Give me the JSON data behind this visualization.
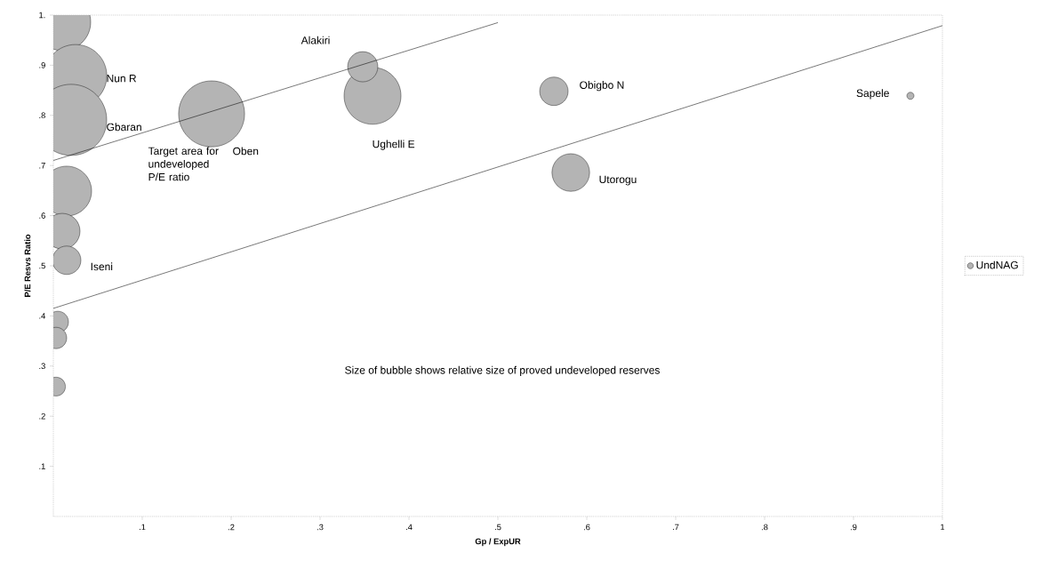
{
  "chart_data": {
    "type": "bubble",
    "xlabel": "Gp / ExpUR",
    "ylabel": "P/E Resvs Ratio",
    "xlim": [
      0,
      1
    ],
    "ylim": [
      0,
      1
    ],
    "xticks": [
      {
        "value": 0.1,
        "label": ".1"
      },
      {
        "value": 0.2,
        "label": ".2"
      },
      {
        "value": 0.3,
        "label": ".3"
      },
      {
        "value": 0.4,
        "label": ".4"
      },
      {
        "value": 0.5,
        "label": ".5"
      },
      {
        "value": 0.6,
        "label": ".6"
      },
      {
        "value": 0.7,
        "label": ".7"
      },
      {
        "value": 0.8,
        "label": ".8"
      },
      {
        "value": 0.9,
        "label": ".9"
      },
      {
        "value": 1.0,
        "label": "1"
      }
    ],
    "yticks": [
      {
        "value": 0.1,
        "label": ".1"
      },
      {
        "value": 0.2,
        "label": ".2"
      },
      {
        "value": 0.3,
        "label": ".3"
      },
      {
        "value": 0.4,
        "label": ".4"
      },
      {
        "value": 0.5,
        "label": ".5"
      },
      {
        "value": 0.6,
        "label": ".6"
      },
      {
        "value": 0.7,
        "label": ".7"
      },
      {
        "value": 0.8,
        "label": ".8"
      },
      {
        "value": 0.9,
        "label": ".9"
      },
      {
        "value": 1.0,
        "label": "1."
      }
    ],
    "legend": "right",
    "series": [
      {
        "name": "UndNAG",
        "color": "#b4b4b4",
        "x": [
          0.01,
          0.025,
          0.02,
          0.015,
          0.01,
          0.015,
          0.005,
          0.003,
          0.003,
          0.178,
          0.359,
          0.348,
          0.563,
          0.582,
          0.964
        ],
        "values": [
          0.986,
          0.879,
          0.791,
          0.649,
          0.569,
          0.511,
          0.388,
          0.356,
          0.259,
          0.803,
          0.839,
          0.897,
          0.848,
          0.686,
          0.839
        ],
        "sizes": [
          0.64,
          0.77,
          1,
          0.49,
          0.25,
          0.16,
          0.09,
          0.09,
          0.07,
          0.86,
          0.64,
          0.18,
          0.16,
          0.28,
          0.01
        ]
      },
      {
        "type": "line",
        "color": "#000000",
        "x": [
          0,
          0.5
        ],
        "values": [
          0.71,
          0.985
        ]
      },
      {
        "type": "line",
        "color": "#000000",
        "x": [
          0,
          1.0
        ],
        "values": [
          0.415,
          0.979
        ]
      }
    ],
    "annotations": [
      "Target area for undeveloped P/E ratio",
      "Size of bubble shows relative size of proved undeveloped reserves",
      "Gbaran",
      "Oben",
      "Alakiri",
      "Ughelli E",
      {
        "text": "Nun R",
        "x": 0.025,
        "y": 0.879
      },
      {
        "text": "Iseni",
        "x": 0.015,
        "y": 0.511
      },
      {
        "text": "Obigbo N",
        "x": 0.563,
        "y": 0.848
      },
      {
        "text": "Utorogu",
        "x": 0.582,
        "y": 0.686
      },
      {
        "text": "Sapele",
        "x": 0.964,
        "y": 0.839
      }
    ]
  }
}
